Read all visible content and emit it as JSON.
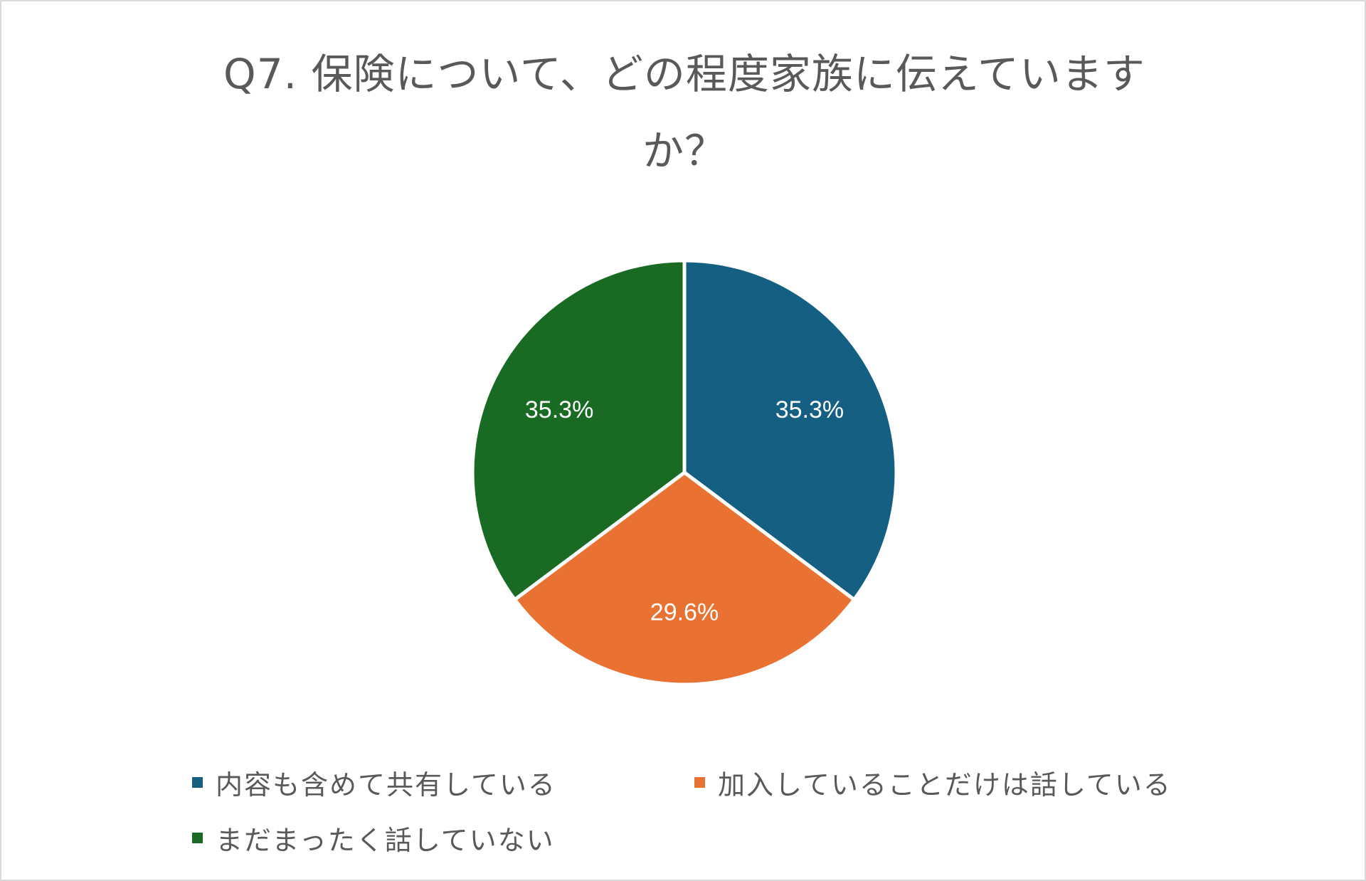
{
  "chart_data": {
    "type": "pie",
    "title_lines": [
      "Q7. 保険について、どの程度家族に伝えていますか？",
      ""
    ],
    "title_line_1": "Q7. 保険について、どの程度家族に伝えています",
    "title_line_2": "か？",
    "categories": [
      "内容も含めて共有している",
      "加入していることだけは話している",
      "まだまったく話していない"
    ],
    "values": [
      35.3,
      29.6,
      35.3
    ],
    "value_labels": [
      "35.3%",
      "29.6%",
      "35.3%"
    ],
    "colors": [
      "#156082",
      "#E97132",
      "#196B24"
    ],
    "slice_border_color": "#ffffff",
    "start_angle_deg": 0,
    "direction": "clockwise",
    "legend_position": "bottom"
  }
}
